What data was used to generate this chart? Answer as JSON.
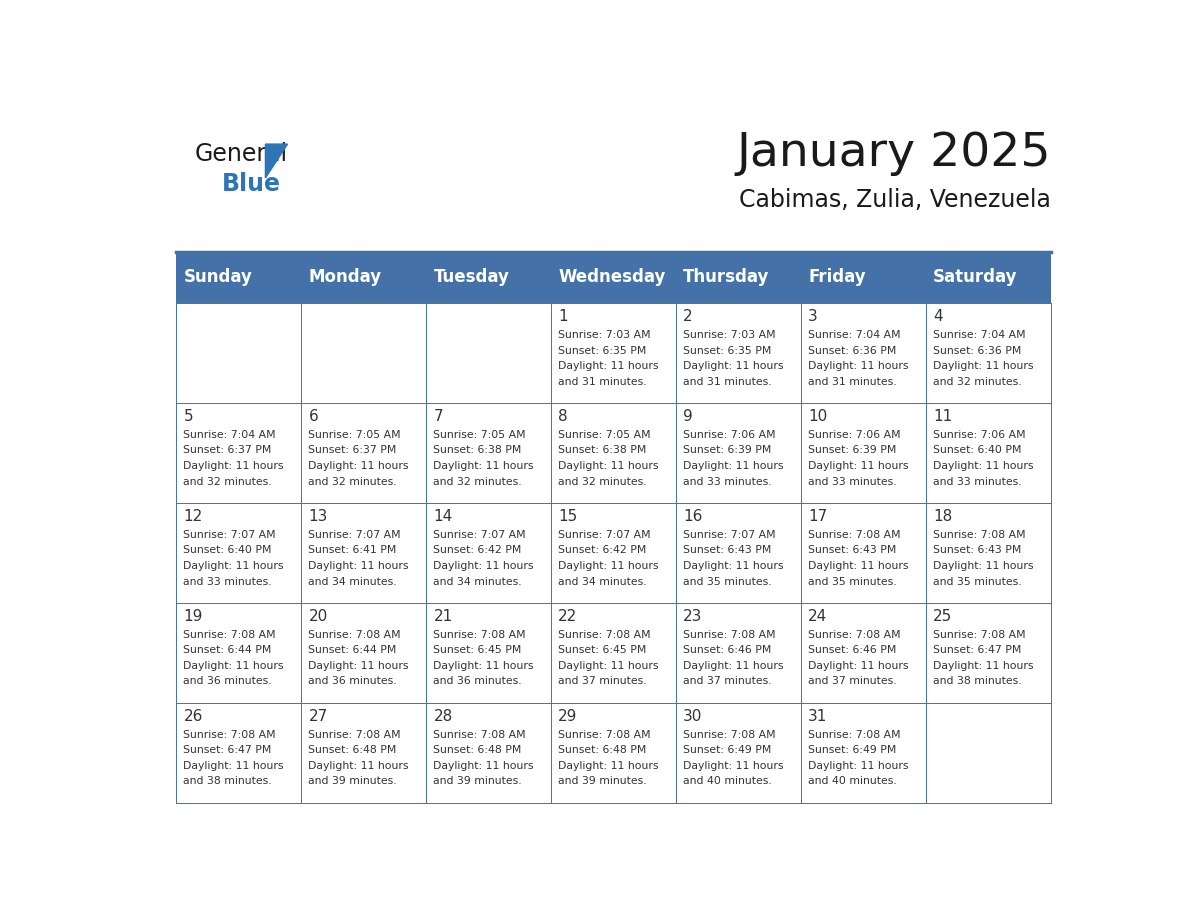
{
  "title": "January 2025",
  "subtitle": "Cabimas, Zulia, Venezuela",
  "header_color": "#4472A8",
  "header_text_color": "#FFFFFF",
  "cell_bg_color": "#FFFFFF",
  "border_color": "#4472A8",
  "day_headers": [
    "Sunday",
    "Monday",
    "Tuesday",
    "Wednesday",
    "Thursday",
    "Friday",
    "Saturday"
  ],
  "title_color": "#1A1A1A",
  "subtitle_color": "#1A1A1A",
  "text_color": "#333333",
  "logo_general_color": "#1A1A1A",
  "logo_blue_color": "#2E75B6",
  "days": [
    {
      "day": 1,
      "col": 3,
      "row": 0,
      "sunrise": "7:03 AM",
      "sunset": "6:35 PM",
      "daylight_suffix": "31 minutes."
    },
    {
      "day": 2,
      "col": 4,
      "row": 0,
      "sunrise": "7:03 AM",
      "sunset": "6:35 PM",
      "daylight_suffix": "31 minutes."
    },
    {
      "day": 3,
      "col": 5,
      "row": 0,
      "sunrise": "7:04 AM",
      "sunset": "6:36 PM",
      "daylight_suffix": "31 minutes."
    },
    {
      "day": 4,
      "col": 6,
      "row": 0,
      "sunrise": "7:04 AM",
      "sunset": "6:36 PM",
      "daylight_suffix": "32 minutes."
    },
    {
      "day": 5,
      "col": 0,
      "row": 1,
      "sunrise": "7:04 AM",
      "sunset": "6:37 PM",
      "daylight_suffix": "32 minutes."
    },
    {
      "day": 6,
      "col": 1,
      "row": 1,
      "sunrise": "7:05 AM",
      "sunset": "6:37 PM",
      "daylight_suffix": "32 minutes."
    },
    {
      "day": 7,
      "col": 2,
      "row": 1,
      "sunrise": "7:05 AM",
      "sunset": "6:38 PM",
      "daylight_suffix": "32 minutes."
    },
    {
      "day": 8,
      "col": 3,
      "row": 1,
      "sunrise": "7:05 AM",
      "sunset": "6:38 PM",
      "daylight_suffix": "32 minutes."
    },
    {
      "day": 9,
      "col": 4,
      "row": 1,
      "sunrise": "7:06 AM",
      "sunset": "6:39 PM",
      "daylight_suffix": "33 minutes."
    },
    {
      "day": 10,
      "col": 5,
      "row": 1,
      "sunrise": "7:06 AM",
      "sunset": "6:39 PM",
      "daylight_suffix": "33 minutes."
    },
    {
      "day": 11,
      "col": 6,
      "row": 1,
      "sunrise": "7:06 AM",
      "sunset": "6:40 PM",
      "daylight_suffix": "33 minutes."
    },
    {
      "day": 12,
      "col": 0,
      "row": 2,
      "sunrise": "7:07 AM",
      "sunset": "6:40 PM",
      "daylight_suffix": "33 minutes."
    },
    {
      "day": 13,
      "col": 1,
      "row": 2,
      "sunrise": "7:07 AM",
      "sunset": "6:41 PM",
      "daylight_suffix": "34 minutes."
    },
    {
      "day": 14,
      "col": 2,
      "row": 2,
      "sunrise": "7:07 AM",
      "sunset": "6:42 PM",
      "daylight_suffix": "34 minutes."
    },
    {
      "day": 15,
      "col": 3,
      "row": 2,
      "sunrise": "7:07 AM",
      "sunset": "6:42 PM",
      "daylight_suffix": "34 minutes."
    },
    {
      "day": 16,
      "col": 4,
      "row": 2,
      "sunrise": "7:07 AM",
      "sunset": "6:43 PM",
      "daylight_suffix": "35 minutes."
    },
    {
      "day": 17,
      "col": 5,
      "row": 2,
      "sunrise": "7:08 AM",
      "sunset": "6:43 PM",
      "daylight_suffix": "35 minutes."
    },
    {
      "day": 18,
      "col": 6,
      "row": 2,
      "sunrise": "7:08 AM",
      "sunset": "6:43 PM",
      "daylight_suffix": "35 minutes."
    },
    {
      "day": 19,
      "col": 0,
      "row": 3,
      "sunrise": "7:08 AM",
      "sunset": "6:44 PM",
      "daylight_suffix": "36 minutes."
    },
    {
      "day": 20,
      "col": 1,
      "row": 3,
      "sunrise": "7:08 AM",
      "sunset": "6:44 PM",
      "daylight_suffix": "36 minutes."
    },
    {
      "day": 21,
      "col": 2,
      "row": 3,
      "sunrise": "7:08 AM",
      "sunset": "6:45 PM",
      "daylight_suffix": "36 minutes."
    },
    {
      "day": 22,
      "col": 3,
      "row": 3,
      "sunrise": "7:08 AM",
      "sunset": "6:45 PM",
      "daylight_suffix": "37 minutes."
    },
    {
      "day": 23,
      "col": 4,
      "row": 3,
      "sunrise": "7:08 AM",
      "sunset": "6:46 PM",
      "daylight_suffix": "37 minutes."
    },
    {
      "day": 24,
      "col": 5,
      "row": 3,
      "sunrise": "7:08 AM",
      "sunset": "6:46 PM",
      "daylight_suffix": "37 minutes."
    },
    {
      "day": 25,
      "col": 6,
      "row": 3,
      "sunrise": "7:08 AM",
      "sunset": "6:47 PM",
      "daylight_suffix": "38 minutes."
    },
    {
      "day": 26,
      "col": 0,
      "row": 4,
      "sunrise": "7:08 AM",
      "sunset": "6:47 PM",
      "daylight_suffix": "38 minutes."
    },
    {
      "day": 27,
      "col": 1,
      "row": 4,
      "sunrise": "7:08 AM",
      "sunset": "6:48 PM",
      "daylight_suffix": "39 minutes."
    },
    {
      "day": 28,
      "col": 2,
      "row": 4,
      "sunrise": "7:08 AM",
      "sunset": "6:48 PM",
      "daylight_suffix": "39 minutes."
    },
    {
      "day": 29,
      "col": 3,
      "row": 4,
      "sunrise": "7:08 AM",
      "sunset": "6:48 PM",
      "daylight_suffix": "39 minutes."
    },
    {
      "day": 30,
      "col": 4,
      "row": 4,
      "sunrise": "7:08 AM",
      "sunset": "6:49 PM",
      "daylight_suffix": "40 minutes."
    },
    {
      "day": 31,
      "col": 5,
      "row": 4,
      "sunrise": "7:08 AM",
      "sunset": "6:49 PM",
      "daylight_suffix": "40 minutes."
    }
  ]
}
